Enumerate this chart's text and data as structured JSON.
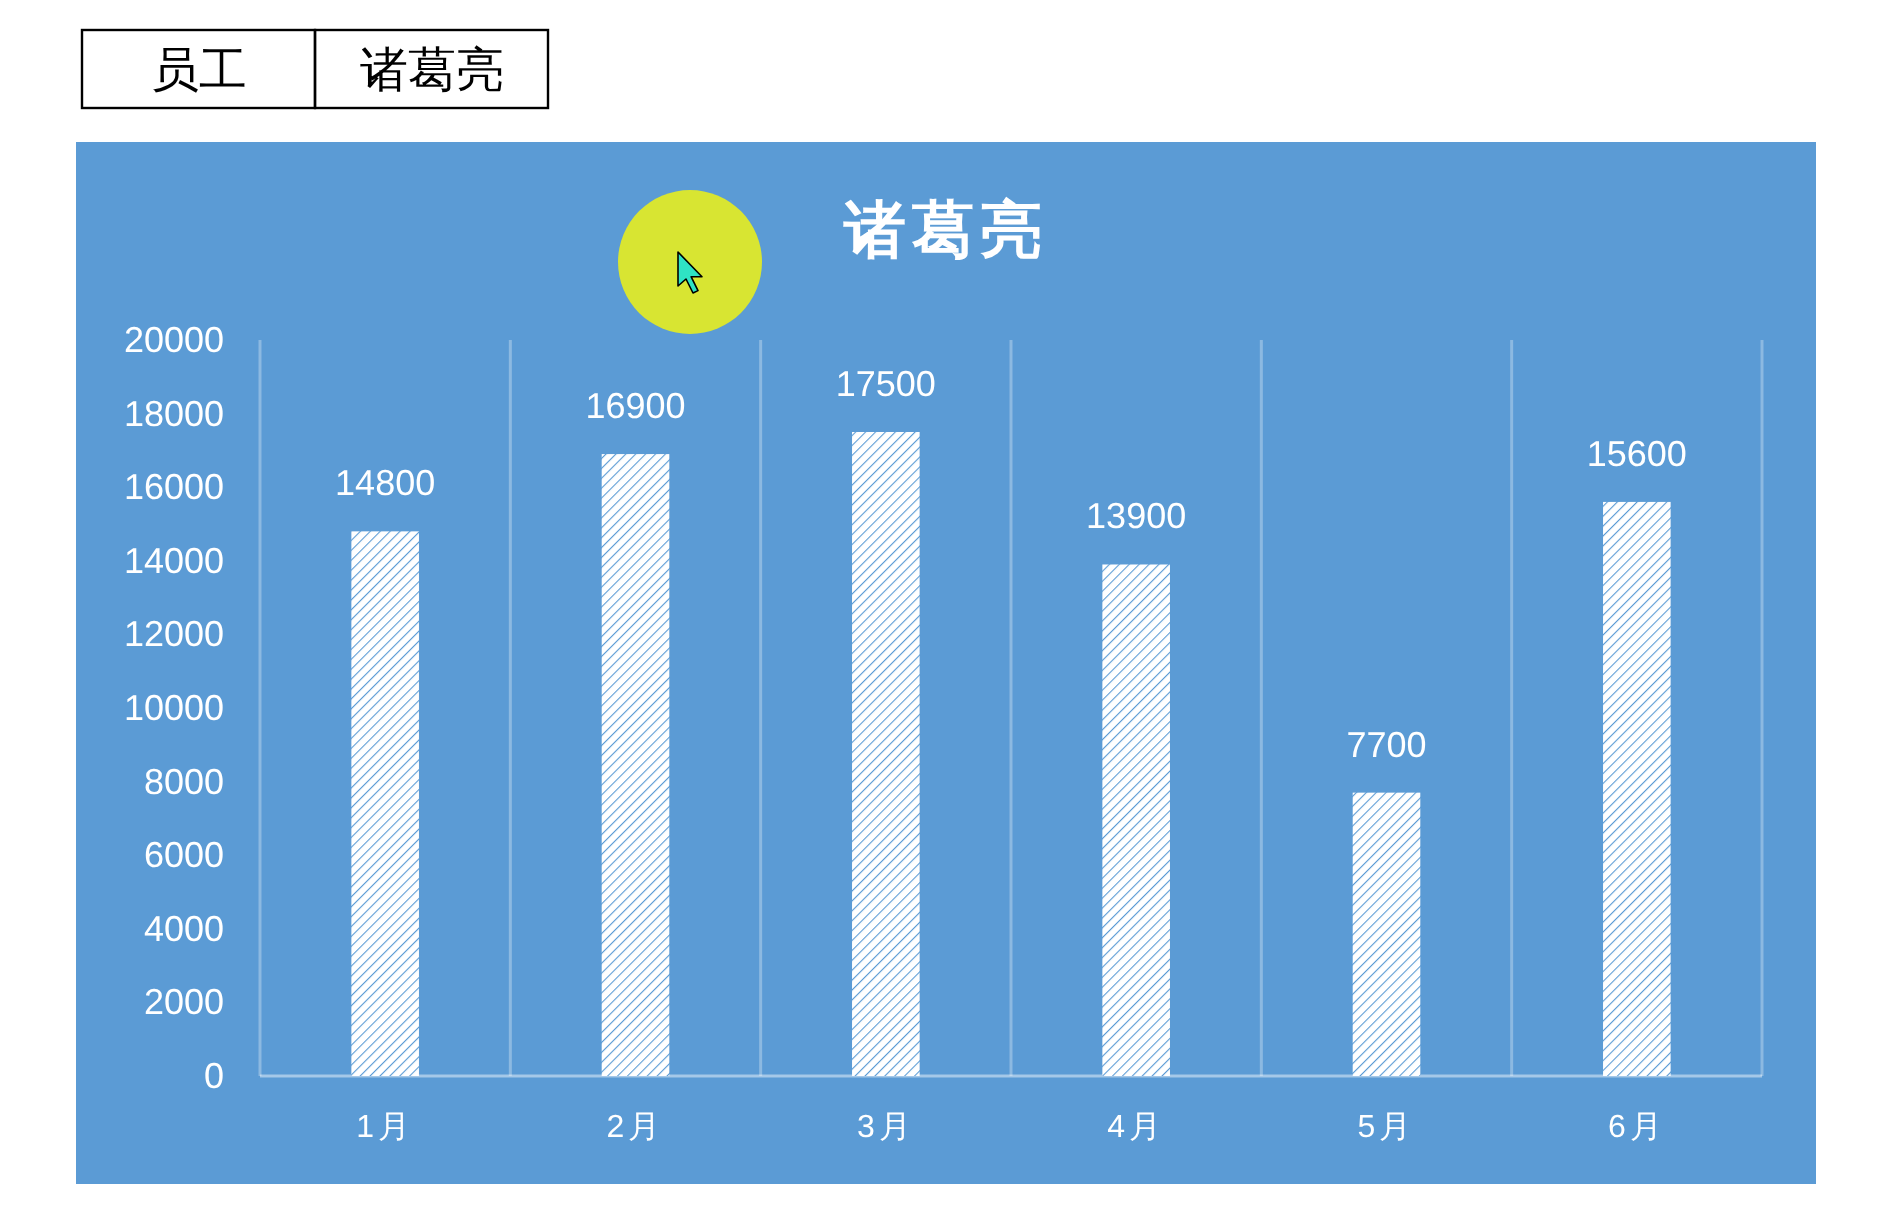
{
  "chart_data": {
    "type": "bar",
    "title": "诸葛亮",
    "categories": [
      "1月",
      "2月",
      "3月",
      "4月",
      "5月",
      "6月"
    ],
    "values": [
      14800,
      16900,
      17500,
      13900,
      7700,
      15600
    ],
    "color": "#ffffff",
    "ylim": [
      0,
      20000
    ],
    "yticks": [
      0,
      2000,
      4000,
      6000,
      8000,
      10000,
      12000,
      14000,
      16000,
      18000,
      20000
    ],
    "grid": "x",
    "data_labels": true,
    "annotations": [
      "员工",
      "诸葛亮"
    ]
  }
}
